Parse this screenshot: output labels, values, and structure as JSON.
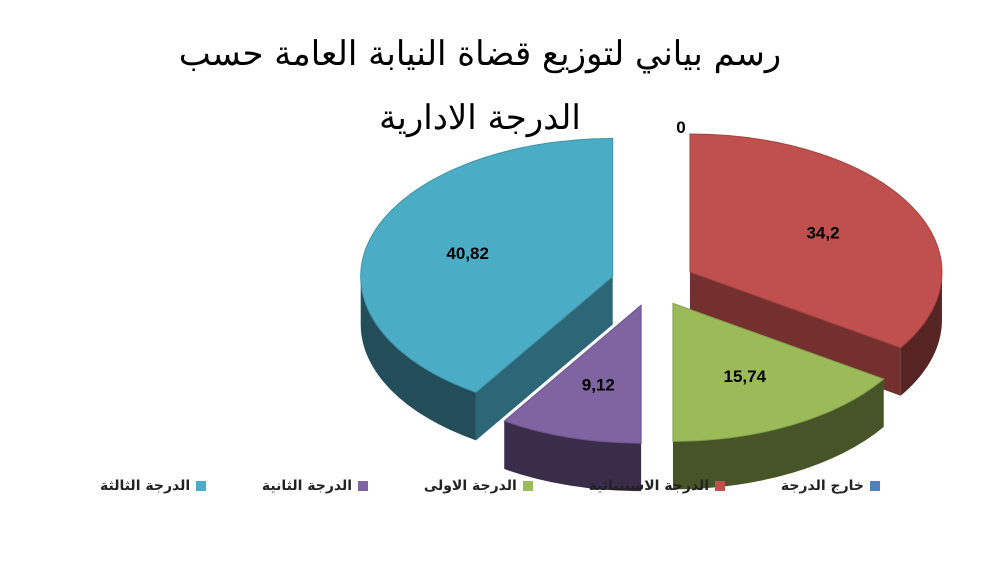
{
  "chart_data": {
    "type": "pie",
    "title": "رسم بياني لتوزيع قضاة النيابة العامة حسب الدرجة الادارية",
    "legend_position": "bottom",
    "slices": [
      {
        "name": "خارج الدرجة",
        "value": 0,
        "label": "0",
        "color": "#4F81BD"
      },
      {
        "name": "الدرجة الاستثنائية",
        "value": 34.2,
        "label": "34,2",
        "color": "#C0504D"
      },
      {
        "name": "الدرجة الاولى",
        "value": 15.74,
        "label": "15,74",
        "color": "#9BBB59"
      },
      {
        "name": "الدرجة الثانية",
        "value": 9.12,
        "label": "9,12",
        "color": "#8064A2"
      },
      {
        "name": "الدرجة الثالثة",
        "value": 40.82,
        "label": "40,82",
        "color": "#4BACC6"
      }
    ]
  }
}
